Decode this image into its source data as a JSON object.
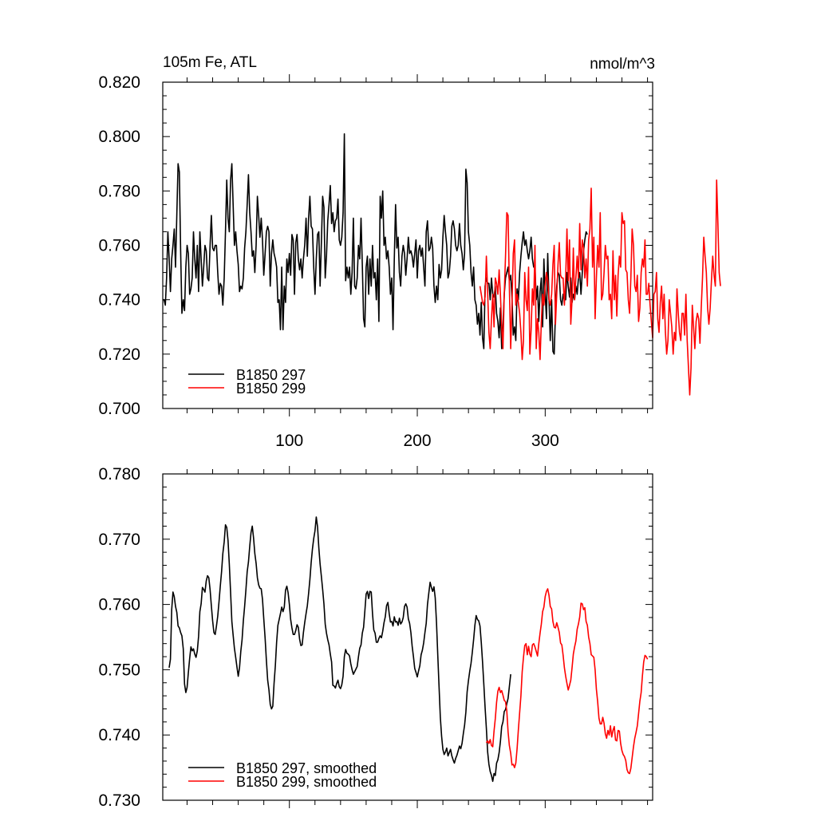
{
  "chart_data": [
    {
      "type": "line",
      "title_left": "105m Fe, ATL",
      "title_right": "nmol/m^3",
      "xlim": [
        1,
        384
      ],
      "ylim": [
        0.7,
        0.82
      ],
      "yticks": [
        "0.700",
        "0.720",
        "0.740",
        "0.760",
        "0.780",
        "0.800",
        "0.820"
      ],
      "xticks": [
        "100",
        "200",
        "300"
      ],
      "legend_position": "bottom-left",
      "series": [
        {
          "name": "B1850 297",
          "color": "#000000",
          "x_start": 1,
          "values": [
            0.74,
            0.74,
            0.738,
            0.748,
            0.765,
            0.755,
            0.743,
            0.755,
            0.76,
            0.766,
            0.752,
            0.771,
            0.79,
            0.787,
            0.758,
            0.735,
            0.74,
            0.736,
            0.752,
            0.76,
            0.757,
            0.742,
            0.744,
            0.748,
            0.765,
            0.755,
            0.748,
            0.76,
            0.743,
            0.765,
            0.755,
            0.745,
            0.752,
            0.76,
            0.758,
            0.748,
            0.747,
            0.76,
            0.771,
            0.759,
            0.758,
            0.76,
            0.76,
            0.75,
            0.742,
            0.746,
            0.745,
            0.738,
            0.748,
            0.765,
            0.784,
            0.77,
            0.765,
            0.784,
            0.79,
            0.775,
            0.76,
            0.765,
            0.758,
            0.753,
            0.743,
            0.745,
            0.744,
            0.748,
            0.759,
            0.765,
            0.775,
            0.786,
            0.772,
            0.765,
            0.756,
            0.758,
            0.75,
            0.76,
            0.778,
            0.771,
            0.763,
            0.77,
            0.762,
            0.749,
            0.757,
            0.765,
            0.767,
            0.765,
            0.745,
            0.757,
            0.762,
            0.757,
            0.755,
            0.752,
            0.739,
            0.74,
            0.729,
            0.752,
            0.729,
            0.745,
            0.739,
            0.755,
            0.75,
            0.757,
            0.749,
            0.764,
            0.762,
            0.742,
            0.761,
            0.764,
            0.755,
            0.751,
            0.755,
            0.748,
            0.755,
            0.76,
            0.77,
            0.756,
            0.77,
            0.778,
            0.767,
            0.766,
            0.752,
            0.742,
            0.755,
            0.764,
            0.765,
            0.745,
            0.761,
            0.778,
            0.774,
            0.748,
            0.756,
            0.769,
            0.775,
            0.782,
            0.768,
            0.772,
            0.765,
            0.769,
            0.77,
            0.777,
            0.762,
            0.76,
            0.763,
            0.772,
            0.801,
            0.747,
            0.752,
            0.748,
            0.752,
            0.742,
            0.75,
            0.77,
            0.745,
            0.744,
            0.748,
            0.76,
            0.755,
            0.77,
            0.753,
            0.733,
            0.73,
            0.752,
            0.756,
            0.742,
            0.755,
            0.745,
            0.76,
            0.748,
            0.75,
            0.74,
            0.755,
            0.732,
            0.778,
            0.77,
            0.78,
            0.76,
            0.763,
            0.755,
            0.758,
            0.752,
            0.742,
            0.748,
            0.729,
            0.755,
            0.775,
            0.759,
            0.763,
            0.75,
            0.745,
            0.756,
            0.76,
            0.757,
            0.749,
            0.755,
            0.763,
            0.757,
            0.758,
            0.756,
            0.752,
            0.757,
            0.762,
            0.748,
            0.758,
            0.76,
            0.756,
            0.759,
            0.752,
            0.745,
            0.765,
            0.769,
            0.758,
            0.759,
            0.763,
            0.759,
            0.745,
            0.739,
            0.745,
            0.74,
            0.753,
            0.748,
            0.751,
            0.763,
            0.771,
            0.765,
            0.76,
            0.748,
            0.75,
            0.756,
            0.767,
            0.769,
            0.766,
            0.76,
            0.758,
            0.76,
            0.768,
            0.76,
            0.757,
            0.751,
            0.757,
            0.788,
            0.783,
            0.765,
            0.76,
            0.75,
            0.745,
            0.752,
            0.74,
            0.738,
            0.731,
            0.735,
            0.727,
            0.739,
            0.726,
            0.722,
            0.745,
            0.748,
            0.746,
            0.746,
            0.74,
            0.748,
            0.742,
            0.741,
            0.745,
            0.735,
            0.732,
            0.726,
            0.737,
            0.722,
            0.73,
            0.742,
            0.748,
            0.75,
            0.752,
            0.747,
            0.749,
            0.741,
            0.727,
            0.73,
            0.725,
            0.744,
            0.74,
            0.75,
            0.756,
            0.761,
            0.765,
            0.76,
            0.762,
            0.758,
            0.755,
            0.758,
            0.763,
            0.755,
            0.752,
            0.752,
            0.74,
            0.745,
            0.732,
            0.743,
            0.748,
            0.73,
            0.755,
            0.742,
            0.733,
            0.757,
            0.74,
            0.725,
            0.74,
            0.721,
            0.72,
            0.735,
            0.745,
            0.75,
            0.749,
            0.74,
            0.738,
            0.742,
            0.74,
            0.74,
            0.75,
            0.745,
            0.741,
            0.748,
            0.739,
            0.742,
            0.74,
            0.745,
            0.742,
            0.748,
            0.75,
            0.742,
            0.75,
            0.758,
            0.762,
            0.765,
            0.764
          ]
        },
        {
          "name": "B1850 299",
          "color": "#ff0000",
          "x_start": 249,
          "values": [
            0.745,
            0.742,
            0.739,
            0.738,
            0.741,
            0.756,
            0.743,
            0.728,
            0.722,
            0.733,
            0.742,
            0.73,
            0.748,
            0.746,
            0.742,
            0.751,
            0.742,
            0.73,
            0.722,
            0.742,
            0.756,
            0.772,
            0.771,
            0.745,
            0.722,
            0.738,
            0.757,
            0.762,
            0.738,
            0.742,
            0.739,
            0.735,
            0.728,
            0.718,
            0.725,
            0.75,
            0.74,
            0.736,
            0.752,
            0.72,
            0.729,
            0.744,
            0.738,
            0.76,
            0.722,
            0.733,
            0.728,
            0.718,
            0.732,
            0.742,
            0.738,
            0.745,
            0.75,
            0.747,
            0.74,
            0.738,
            0.742,
            0.753,
            0.76,
            0.731,
            0.742,
            0.753,
            0.761,
            0.749,
            0.748,
            0.748,
            0.738,
            0.748,
            0.766,
            0.747,
            0.762,
            0.731,
            0.74,
            0.759,
            0.74,
            0.748,
            0.756,
            0.748,
            0.768,
            0.751,
            0.762,
            0.759,
            0.748,
            0.755,
            0.745,
            0.762,
            0.766,
            0.781,
            0.752,
            0.763,
            0.733,
            0.748,
            0.76,
            0.752,
            0.772,
            0.74,
            0.742,
            0.75,
            0.76,
            0.755,
            0.756,
            0.74,
            0.742,
            0.733,
            0.758,
            0.74,
            0.749,
            0.734,
            0.749,
            0.756,
            0.752,
            0.772,
            0.768,
            0.769,
            0.751,
            0.75,
            0.74,
            0.735,
            0.748,
            0.766,
            0.76,
            0.745,
            0.743,
            0.749,
            0.732,
            0.737,
            0.75,
            0.755,
            0.752,
            0.762,
            0.742,
            0.742,
            0.746,
            0.738,
            0.732,
            0.726,
            0.742,
            0.743,
            0.75,
            0.733,
            0.728,
            0.739,
            0.745,
            0.733,
            0.742,
            0.728,
            0.72,
            0.725,
            0.74,
            0.735,
            0.73,
            0.72,
            0.728,
            0.725,
            0.744,
            0.735,
            0.728,
            0.725,
            0.735,
            0.735,
            0.727,
            0.742,
            0.725,
            0.715,
            0.705,
            0.715,
            0.738,
            0.73,
            0.722,
            0.732,
            0.735,
            0.733,
            0.724,
            0.737,
            0.748,
            0.763,
            0.756,
            0.75,
            0.737,
            0.731,
            0.737,
            0.747,
            0.756,
            0.749,
            0.745,
            0.784,
            0.768,
            0.75,
            0.745
          ]
        }
      ]
    },
    {
      "type": "line",
      "xlim": [
        1,
        384
      ],
      "ylim": [
        0.73,
        0.78
      ],
      "yticks": [
        "0.730",
        "0.740",
        "0.750",
        "0.760",
        "0.770",
        "0.780"
      ],
      "legend_position": "bottom-left",
      "series": [
        {
          "name": "B1850 297, smoothed",
          "color": "#000000",
          "x_start": 6,
          "values": [
            0.7503,
            0.7516,
            0.7592,
            0.7619,
            0.7612,
            0.7597,
            0.7588,
            0.7567,
            0.7564,
            0.7557,
            0.7552,
            0.7532,
            0.7478,
            0.7465,
            0.7473,
            0.7496,
            0.7517,
            0.7535,
            0.7529,
            0.7532,
            0.7524,
            0.7519,
            0.7529,
            0.7551,
            0.7589,
            0.7601,
            0.7626,
            0.7623,
            0.7619,
            0.7636,
            0.7644,
            0.7641,
            0.7623,
            0.7598,
            0.7575,
            0.7557,
            0.7554,
            0.7567,
            0.7582,
            0.7604,
            0.7628,
            0.765,
            0.7678,
            0.7696,
            0.7722,
            0.7718,
            0.7698,
            0.7662,
            0.7619,
            0.7574,
            0.7553,
            0.7533,
            0.7519,
            0.7504,
            0.749,
            0.7503,
            0.7528,
            0.7546,
            0.7575,
            0.7597,
            0.7622,
            0.765,
            0.7665,
            0.7689,
            0.771,
            0.772,
            0.7702,
            0.7678,
            0.7663,
            0.7641,
            0.763,
            0.7625,
            0.7624,
            0.7608,
            0.7578,
            0.7548,
            0.7514,
            0.7484,
            0.7469,
            0.7447,
            0.744,
            0.7444,
            0.7479,
            0.7506,
            0.7542,
            0.7568,
            0.7577,
            0.7586,
            0.7596,
            0.7589,
            0.7596,
            0.7622,
            0.7628,
            0.7618,
            0.76,
            0.7577,
            0.7564,
            0.7554,
            0.7554,
            0.756,
            0.7569,
            0.7565,
            0.7547,
            0.7537,
            0.7538,
            0.7557,
            0.7572,
            0.7586,
            0.7598,
            0.7617,
            0.7638,
            0.7664,
            0.7685,
            0.7701,
            0.7713,
            0.7734,
            0.7719,
            0.7687,
            0.7662,
            0.7643,
            0.7623,
            0.7601,
            0.757,
            0.7556,
            0.7546,
            0.7538,
            0.7524,
            0.7512,
            0.7476,
            0.7475,
            0.7472,
            0.7479,
            0.7484,
            0.7474,
            0.7471,
            0.7477,
            0.749,
            0.752,
            0.7531,
            0.7525,
            0.7524,
            0.7521,
            0.7509,
            0.75,
            0.7493,
            0.7497,
            0.7501,
            0.7505,
            0.752,
            0.7533,
            0.7538,
            0.7556,
            0.7565,
            0.759,
            0.7616,
            0.762,
            0.7609,
            0.762,
            0.7619,
            0.7586,
            0.7561,
            0.7556,
            0.7542,
            0.7542,
            0.7548,
            0.7552,
            0.7549,
            0.7559,
            0.7572,
            0.7581,
            0.7598,
            0.7603,
            0.7586,
            0.7573,
            0.7574,
            0.7567,
            0.7581,
            0.7573,
            0.7574,
            0.7568,
            0.7579,
            0.757,
            0.7573,
            0.758,
            0.7597,
            0.7601,
            0.7596,
            0.7578,
            0.7571,
            0.7557,
            0.7536,
            0.752,
            0.7502,
            0.7496,
            0.7489,
            0.7498,
            0.7506,
            0.7523,
            0.753,
            0.7541,
            0.7557,
            0.7571,
            0.76,
            0.7618,
            0.7634,
            0.7626,
            0.762,
            0.7627,
            0.761,
            0.7572,
            0.7522,
            0.7474,
            0.7427,
            0.7398,
            0.7378,
            0.737,
            0.7374,
            0.738,
            0.7368,
            0.7373,
            0.7378,
            0.7368,
            0.7362,
            0.7357,
            0.7364,
            0.7369,
            0.7376,
            0.7383,
            0.7379,
            0.7387,
            0.7402,
            0.7415,
            0.7435,
            0.7466,
            0.7483,
            0.7498,
            0.751,
            0.7527,
            0.7546,
            0.7568,
            0.7583,
            0.7577,
            0.7575,
            0.7567,
            0.7542,
            0.7512,
            0.7478,
            0.7442,
            0.741,
            0.7374,
            0.7355,
            0.7344,
            0.7338,
            0.7329,
            0.7341,
            0.7338,
            0.7357,
            0.7362,
            0.7373,
            0.739,
            0.7413,
            0.742,
            0.7436,
            0.7439,
            0.7448,
            0.7456,
            0.7474,
            0.7493
          ]
        },
        {
          "name": "B1850 299, smoothed",
          "color": "#ff0000",
          "x_start": 254,
          "values": [
            0.7388,
            0.7391,
            0.7387,
            0.7393,
            0.7384,
            0.7382,
            0.7406,
            0.7425,
            0.745,
            0.7467,
            0.7473,
            0.7465,
            0.7468,
            0.7461,
            0.7453,
            0.7451,
            0.7437,
            0.7405,
            0.7384,
            0.7372,
            0.7354,
            0.7355,
            0.735,
            0.7357,
            0.7379,
            0.7408,
            0.7434,
            0.746,
            0.7497,
            0.7519,
            0.7537,
            0.754,
            0.7523,
            0.7536,
            0.7524,
            0.752,
            0.7538,
            0.754,
            0.7535,
            0.7528,
            0.7521,
            0.754,
            0.7556,
            0.757,
            0.7589,
            0.7596,
            0.7612,
            0.762,
            0.7624,
            0.7614,
            0.7597,
            0.7593,
            0.7574,
            0.7565,
            0.7564,
            0.7572,
            0.7565,
            0.7557,
            0.7541,
            0.7538,
            0.7522,
            0.7503,
            0.749,
            0.7479,
            0.7469,
            0.7476,
            0.7484,
            0.7503,
            0.7524,
            0.7535,
            0.7544,
            0.7562,
            0.757,
            0.7581,
            0.7602,
            0.7601,
            0.7592,
            0.7595,
            0.7574,
            0.7568,
            0.755,
            0.754,
            0.7523,
            0.7521,
            0.7519,
            0.75,
            0.747,
            0.7451,
            0.7426,
            0.7417,
            0.7417,
            0.7427,
            0.7418,
            0.7402,
            0.7395,
            0.7407,
            0.74,
            0.7414,
            0.7397,
            0.7407,
            0.7413,
            0.7392,
            0.7391,
            0.7407,
            0.7406,
            0.7387,
            0.7376,
            0.737,
            0.7367,
            0.7361,
            0.7347,
            0.7342,
            0.7341,
            0.7349,
            0.7365,
            0.7382,
            0.7395,
            0.7404,
            0.7414,
            0.7433,
            0.7452,
            0.7465,
            0.7491,
            0.7512,
            0.7522,
            0.752,
            0.7516
          ]
        }
      ]
    }
  ]
}
